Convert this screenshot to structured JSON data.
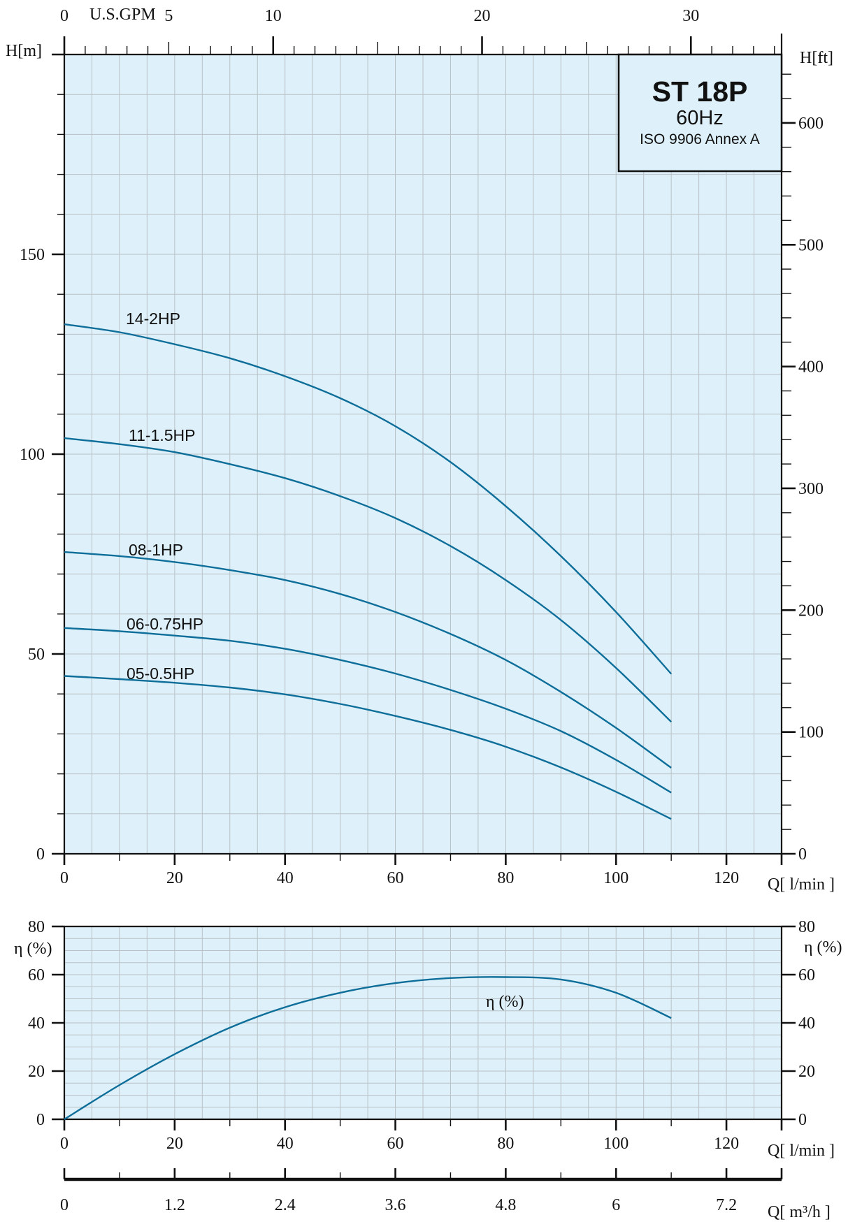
{
  "title_box": {
    "model": "ST 18P",
    "frequency": "60Hz",
    "standard": "ISO 9906 Annex A"
  },
  "chart_data": [
    {
      "type": "line",
      "name": "head",
      "xlabel": "Q[ l/min ]",
      "ylabel": "H[m]",
      "ylabel_right": "H[ft]",
      "top_axis_label": "U.S.GPM",
      "xlim": [
        0,
        130
      ],
      "ylim": [
        0,
        200
      ],
      "x_ticks": [
        "0",
        "20",
        "40",
        "60",
        "80",
        "100",
        "120"
      ],
      "y_ticks": [
        "0",
        "50",
        "100",
        "150"
      ],
      "ft_ticks": [
        "0",
        "100",
        "200",
        "300",
        "400",
        "500",
        "600"
      ],
      "gpm_ticks": [
        "0",
        "5",
        "10",
        "20",
        "30"
      ],
      "grid": true,
      "series": [
        {
          "name": "14-2HP",
          "x": [
            0,
            10,
            20,
            30,
            40,
            50,
            60,
            70,
            80,
            90,
            100,
            110
          ],
          "values": [
            132.5,
            130.5,
            127.5,
            124.0,
            119.5,
            114.0,
            107.0,
            98.0,
            87.0,
            74.5,
            60.5,
            45.0
          ]
        },
        {
          "name": "11-1.5HP",
          "x": [
            0,
            10,
            20,
            30,
            40,
            50,
            60,
            70,
            80,
            90,
            100,
            110
          ],
          "values": [
            104.0,
            102.5,
            100.5,
            97.5,
            94.0,
            89.5,
            84.0,
            77.0,
            68.5,
            58.5,
            46.5,
            33.0
          ]
        },
        {
          "name": "08-1HP",
          "x": [
            0,
            10,
            20,
            30,
            40,
            50,
            60,
            70,
            80,
            90,
            100,
            110
          ],
          "values": [
            75.5,
            74.5,
            73.0,
            71.0,
            68.5,
            65.0,
            60.5,
            55.0,
            48.5,
            40.5,
            31.5,
            21.5
          ]
        },
        {
          "name": "06-0.75HP",
          "x": [
            0,
            10,
            20,
            30,
            40,
            50,
            60,
            70,
            80,
            90,
            100,
            110
          ],
          "values": [
            56.5,
            55.7,
            54.6,
            53.3,
            51.3,
            48.5,
            45.1,
            41.0,
            36.3,
            30.7,
            23.5,
            15.3
          ]
        },
        {
          "name": "05-0.5HP",
          "x": [
            0,
            10,
            20,
            30,
            40,
            50,
            60,
            70,
            80,
            90,
            100,
            110
          ],
          "values": [
            44.5,
            43.7,
            42.8,
            41.6,
            39.9,
            37.5,
            34.5,
            31.0,
            26.8,
            21.6,
            15.5,
            8.7
          ]
        }
      ]
    },
    {
      "type": "line",
      "name": "efficiency",
      "xlabel": "Q[ l/min ]",
      "ylabel": "η (%)",
      "ylabel_right": "η (%)",
      "xlim": [
        0,
        130
      ],
      "ylim": [
        0,
        80
      ],
      "x_ticks": [
        "0",
        "20",
        "40",
        "60",
        "80",
        "100",
        "120"
      ],
      "y_ticks": [
        "0",
        "20",
        "40",
        "60",
        "80"
      ],
      "grid": true,
      "series": [
        {
          "name": "η (%)",
          "x": [
            0,
            10,
            20,
            30,
            40,
            50,
            60,
            70,
            80,
            90,
            100,
            110
          ],
          "values": [
            0,
            14.2,
            27.0,
            38.0,
            46.5,
            52.5,
            56.5,
            58.6,
            59.0,
            58.0,
            52.5,
            42.0
          ]
        }
      ]
    },
    {
      "type": "axis",
      "name": "flow_m3h",
      "xlabel": "Q[ m³/h ]",
      "x_ticks": [
        "0",
        "1.2",
        "2.4",
        "3.6",
        "4.8",
        "6",
        "7.2"
      ]
    }
  ]
}
